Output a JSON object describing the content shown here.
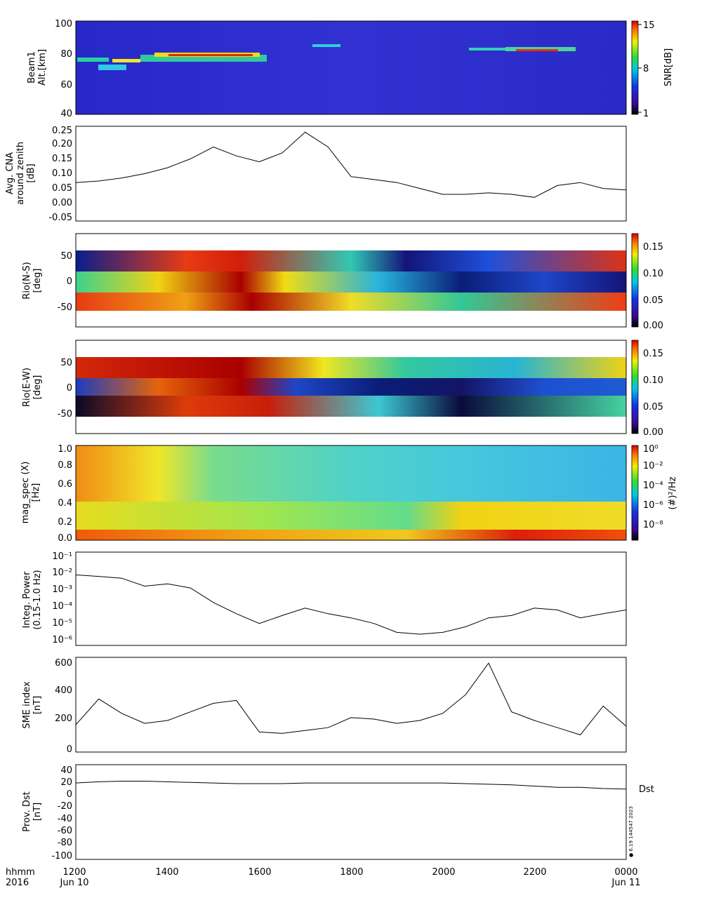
{
  "x_axis": {
    "ticks": [
      "1200",
      "1400",
      "1600",
      "1800",
      "2000",
      "2200",
      "0000"
    ],
    "left_label": [
      "hhmm",
      "2016"
    ],
    "date_labels": [
      "Jun 10",
      "Jun 11"
    ]
  },
  "stamp": "● 6.19 144547 2023",
  "chart_data": [
    {
      "type": "heatmap",
      "ylabel": [
        "Beam1",
        "Alt.[km]"
      ],
      "y_ticks": [
        "100",
        "80",
        "60",
        "40"
      ],
      "ylim": [
        40,
        100
      ],
      "colorbar": {
        "label": "SNR[dB]",
        "ticks": [
          "15",
          "8",
          "1"
        ],
        "range": [
          1,
          15
        ]
      }
    },
    {
      "type": "line",
      "ylabel": [
        "Avg. CNA",
        "around zenith",
        "[dB]"
      ],
      "y_ticks": [
        "0.25",
        "0.20",
        "0.15",
        "0.10",
        "0.05",
        "0.00",
        "-0.05"
      ],
      "ylim": [
        -0.06,
        0.26
      ],
      "x": [
        0,
        0.5,
        1,
        1.5,
        2,
        2.5,
        3,
        3.5,
        4,
        4.5,
        5,
        5.5,
        6,
        6.5,
        7,
        7.5,
        8,
        8.5,
        9,
        9.5,
        10,
        10.5,
        11,
        11.5,
        12
      ],
      "values": [
        0.07,
        0.075,
        0.085,
        0.1,
        0.12,
        0.15,
        0.19,
        0.16,
        0.14,
        0.17,
        0.24,
        0.19,
        0.09,
        0.08,
        0.07,
        0.05,
        0.03,
        0.03,
        0.035,
        0.03,
        0.02,
        0.06,
        0.07,
        0.05,
        0.045
      ]
    },
    {
      "type": "heatmap",
      "ylabel": [
        "Rio(N-S)",
        "[deg]"
      ],
      "y_ticks": [
        "50",
        "0",
        "-50"
      ],
      "colorbar": {
        "ticks": [
          "0.15",
          "0.10",
          "0.05",
          "0.00"
        ],
        "range": [
          0,
          0.17
        ]
      }
    },
    {
      "type": "heatmap",
      "ylabel": [
        "Rio(E-W)",
        "[deg]"
      ],
      "y_ticks": [
        "50",
        "0",
        "-50"
      ],
      "colorbar": {
        "ticks": [
          "0.15",
          "0.10",
          "0.05",
          "0.00"
        ],
        "range": [
          0,
          0.17
        ]
      }
    },
    {
      "type": "heatmap",
      "ylabel": [
        "mag_spec (X)",
        "[Hz]"
      ],
      "y_ticks": [
        "1.0",
        "0.8",
        "0.6",
        "0.4",
        "0.2",
        "0.0"
      ],
      "ylim": [
        0,
        1.0
      ],
      "colorbar": {
        "label": "(#)²/Hz",
        "ticks": [
          "10⁰",
          "10⁻²",
          "10⁻⁴",
          "10⁻⁶",
          "10⁻⁸"
        ]
      }
    },
    {
      "type": "line",
      "ylabel": [
        "Integ. Power",
        "(0.15-1.0 Hz)"
      ],
      "y_ticks": [
        "10⁻¹",
        "10⁻²",
        "10⁻³",
        "10⁻⁴",
        "10⁻⁵",
        "10⁻⁶"
      ],
      "scale": "log",
      "ylim": [
        1e-06,
        0.1
      ],
      "x": [
        0,
        0.5,
        1,
        1.5,
        2,
        2.5,
        3,
        3.5,
        4,
        4.5,
        5,
        5.5,
        6,
        6.5,
        7,
        7.5,
        8,
        8.5,
        9,
        9.5,
        10,
        10.5,
        11,
        11.5,
        12
      ],
      "values": [
        0.006,
        0.005,
        0.004,
        0.0015,
        0.002,
        0.0012,
        0.0002,
        5e-05,
        1.5e-05,
        4e-05,
        0.0001,
        5e-05,
        3e-05,
        1.5e-05,
        5e-06,
        4e-06,
        5e-06,
        1e-05,
        3e-05,
        4e-05,
        0.0001,
        8e-05,
        3e-05,
        5e-05,
        8e-05
      ]
    },
    {
      "type": "line",
      "ylabel": [
        "SME index",
        "[nT]"
      ],
      "y_ticks": [
        "600",
        "400",
        "200",
        "0"
      ],
      "ylim": [
        -20,
        640
      ],
      "x": [
        0,
        0.5,
        1,
        1.5,
        2,
        2.5,
        3,
        3.5,
        4,
        4.5,
        5,
        5.5,
        6,
        6.5,
        7,
        7.5,
        8,
        8.5,
        9,
        9.5,
        10,
        10.5,
        11,
        11.5,
        12
      ],
      "values": [
        170,
        350,
        250,
        180,
        200,
        260,
        320,
        340,
        120,
        110,
        130,
        150,
        220,
        210,
        180,
        200,
        250,
        380,
        600,
        260,
        200,
        150,
        100,
        300,
        160
      ]
    },
    {
      "type": "line",
      "ylabel": [
        "Prov. Dst",
        "[nT]"
      ],
      "y_ticks": [
        "40",
        "20",
        "0",
        "-20",
        "-40",
        "-60",
        "-80",
        "-100"
      ],
      "ylim": [
        -110,
        45
      ],
      "series_label": "Dst",
      "x": [
        0,
        0.5,
        1,
        1.5,
        2,
        2.5,
        3,
        3.5,
        4,
        4.5,
        5,
        5.5,
        6,
        6.5,
        7,
        7.5,
        8,
        8.5,
        9,
        9.5,
        10,
        10.5,
        11,
        11.5,
        12
      ],
      "values": [
        15,
        17,
        18,
        18,
        17,
        16,
        15,
        14,
        14,
        14,
        15,
        15,
        15,
        15,
        15,
        15,
        15,
        14,
        13,
        12,
        10,
        8,
        8,
        6,
        5
      ]
    }
  ]
}
